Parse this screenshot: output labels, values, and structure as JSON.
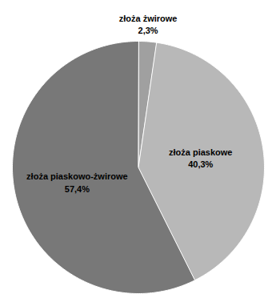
{
  "chart_data": {
    "type": "pie",
    "categories": [
      "złoża żwirowe",
      "złoża piaskowe",
      "złoża piaskowo-żwirowe"
    ],
    "values": [
      2.3,
      40.3,
      57.4
    ],
    "value_labels": [
      "2,3%",
      "40,3%",
      "57,4%"
    ],
    "colors": [
      "#a0a0a0",
      "#b8b8b8",
      "#787878"
    ],
    "data_labels": true
  }
}
